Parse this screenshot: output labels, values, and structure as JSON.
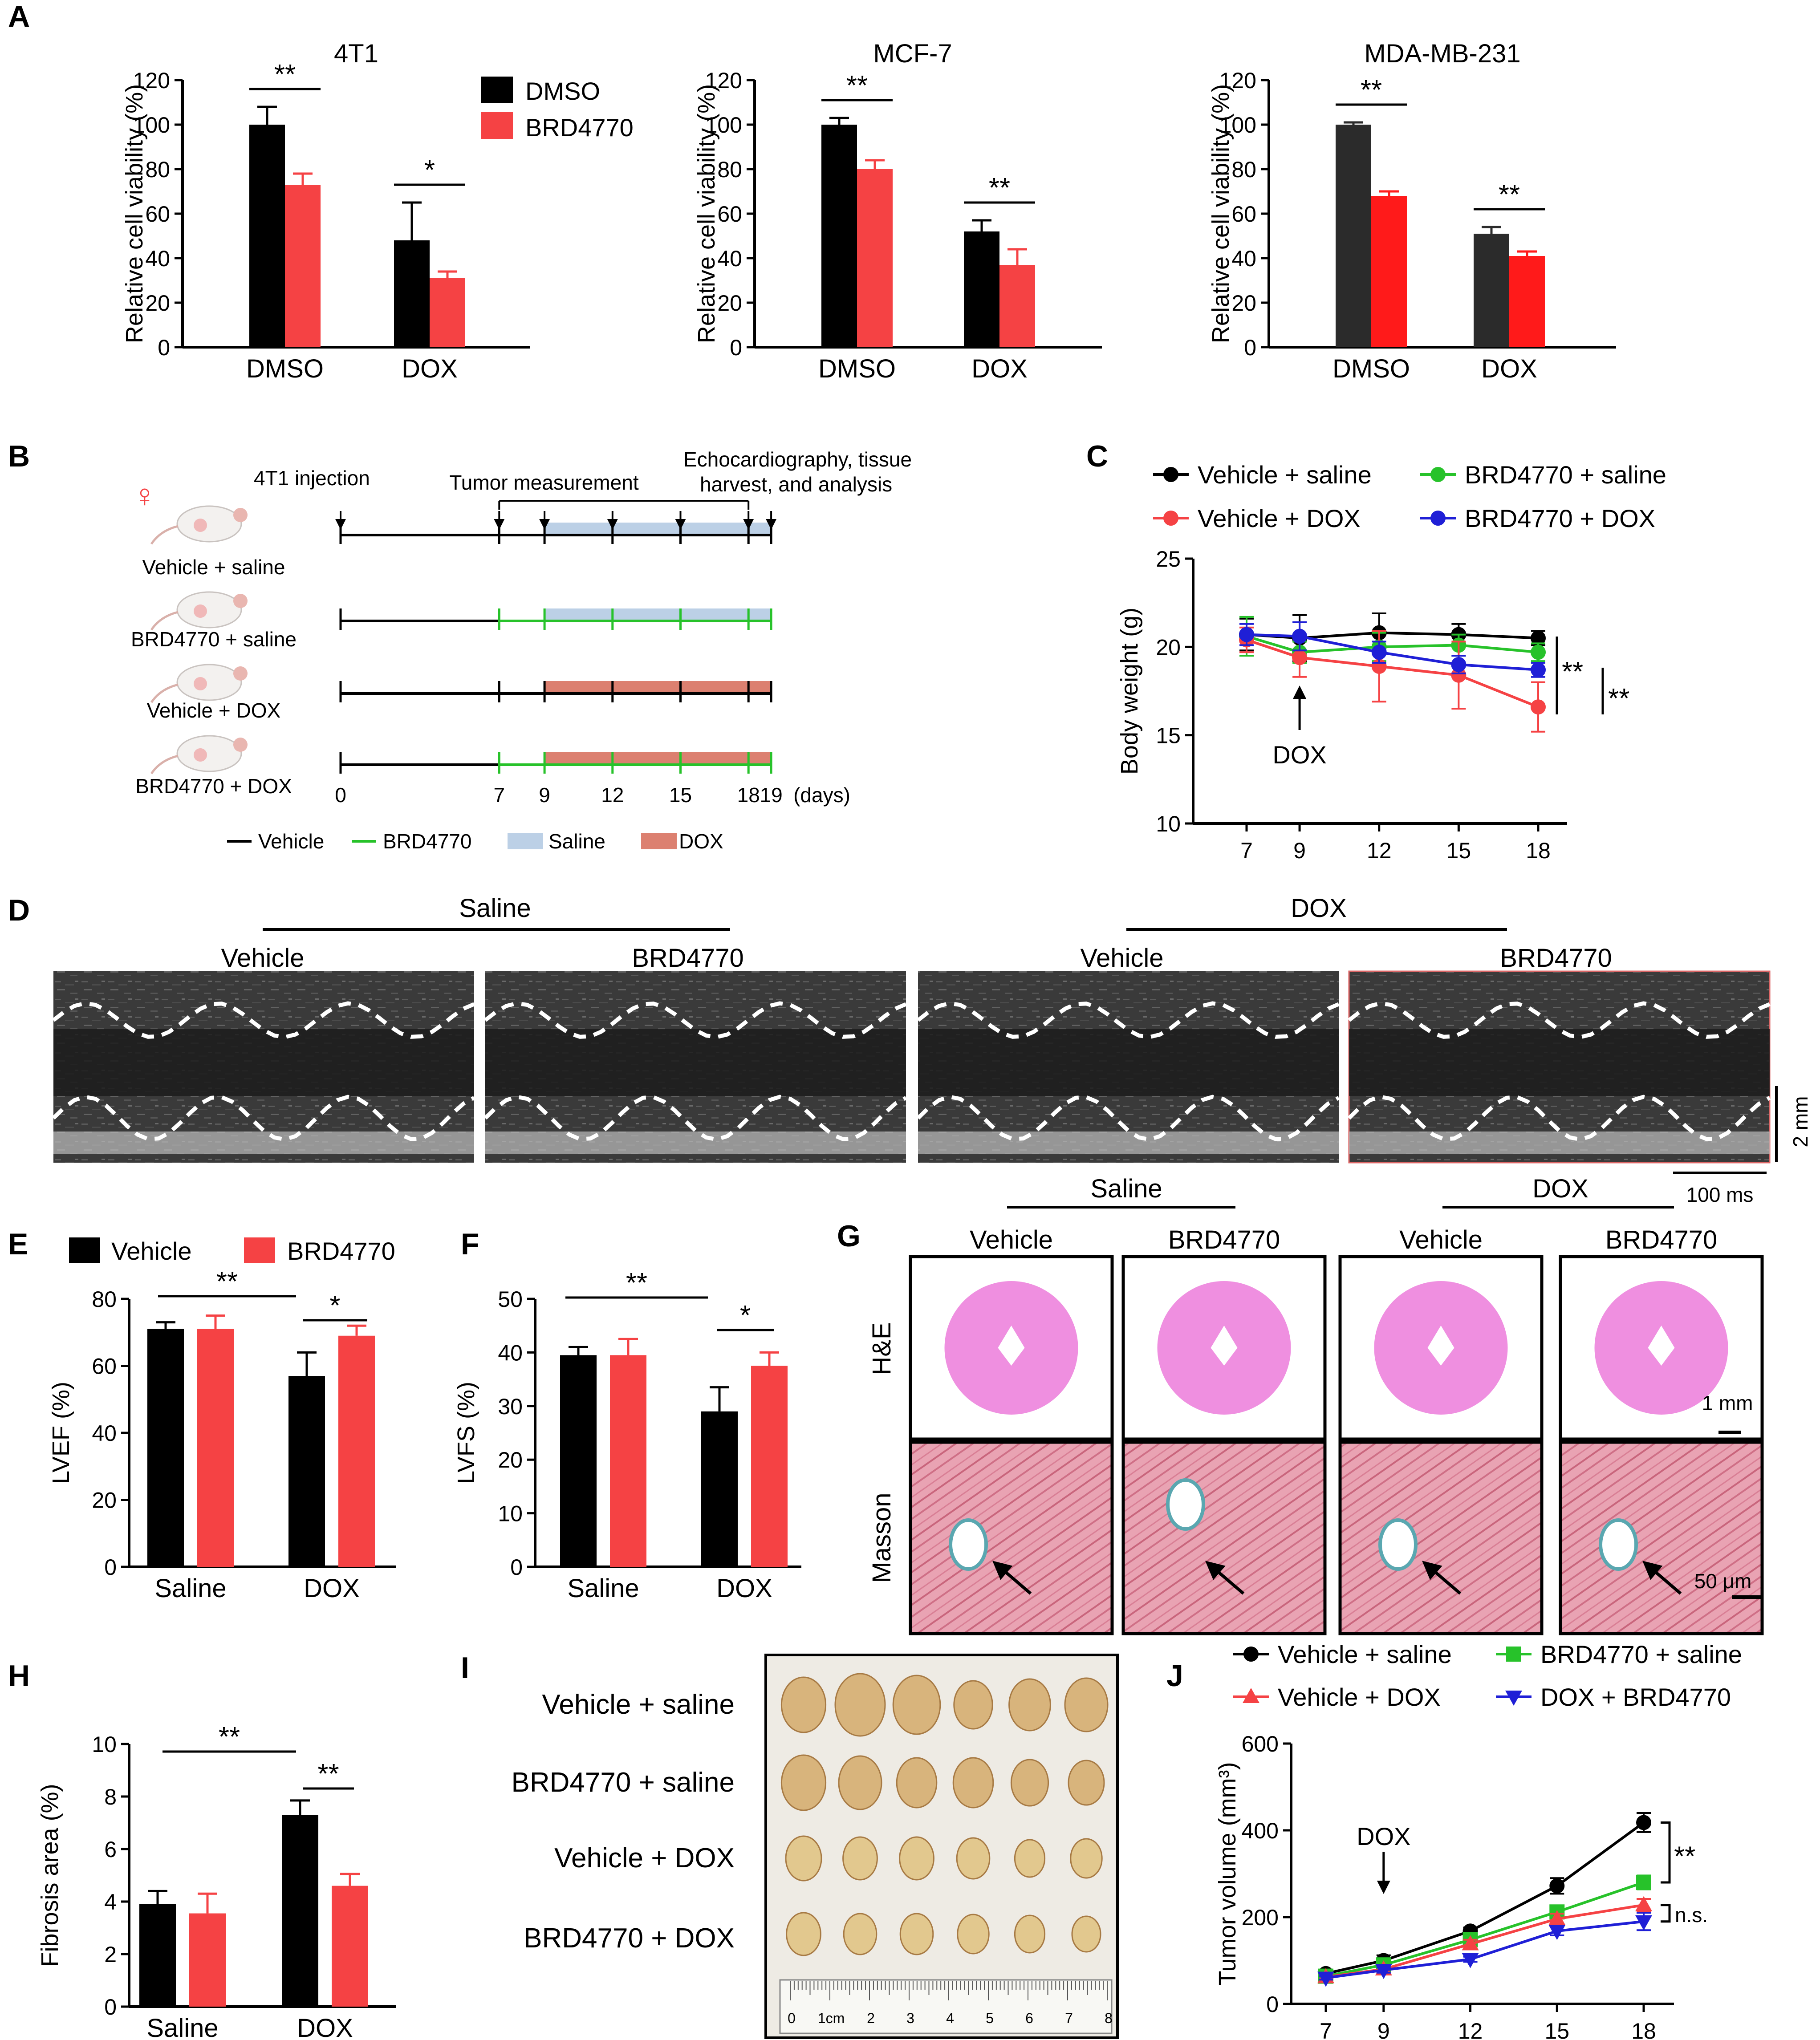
{
  "colors": {
    "black": "#000000",
    "dark": "#2b2b2b",
    "red": "#f54244",
    "pure_red": "#ff1a1a",
    "green": "#27c22a",
    "blue": "#1f1fd6",
    "saline_bar": "#bcd0e6",
    "dox_bar": "#dc8070",
    "muscle": "#e8a8b8",
    "he_pink": "#ef8fe0"
  },
  "panel_labels": {
    "a": "A",
    "b": "B",
    "c": "C",
    "d": "D",
    "e": "E",
    "f": "F",
    "g": "G",
    "h": "H",
    "i": "I",
    "j": "J"
  },
  "panel_a": {
    "legend": [
      "DMSO",
      "BRD4770"
    ],
    "charts": [
      {
        "title": "4T1",
        "categories": [
          "DMSO",
          "DOX"
        ],
        "series": [
          {
            "name": "DMSO",
            "values": [
              100,
              48
            ],
            "errors": [
              8,
              17
            ]
          },
          {
            "name": "BRD4770",
            "values": [
              73,
              31
            ],
            "errors": [
              5,
              3
            ]
          }
        ],
        "ylabel": "Relative cell viability (%)",
        "ylim": [
          0,
          120
        ],
        "yticks": [
          "0",
          "20",
          "40",
          "60",
          "80",
          "100",
          "120"
        ],
        "sig": [
          "**",
          "*"
        ]
      },
      {
        "title": "MCF-7",
        "categories": [
          "DMSO",
          "DOX"
        ],
        "series": [
          {
            "name": "DMSO",
            "values": [
              100,
              52
            ],
            "errors": [
              3,
              5
            ]
          },
          {
            "name": "BRD4770",
            "values": [
              80,
              37
            ],
            "errors": [
              4,
              7
            ]
          }
        ],
        "ylabel": "Relative cell viability (%)",
        "ylim": [
          0,
          120
        ],
        "yticks": [
          "0",
          "20",
          "40",
          "60",
          "80",
          "100",
          "120"
        ],
        "sig": [
          "**",
          "**"
        ]
      },
      {
        "title": "MDA-MB-231",
        "categories": [
          "DMSO",
          "DOX"
        ],
        "series": [
          {
            "name": "DMSO",
            "values": [
              100,
              51
            ],
            "errors": [
              1,
              3
            ]
          },
          {
            "name": "BRD4770",
            "values": [
              68,
              41
            ],
            "errors": [
              2,
              2
            ]
          }
        ],
        "ylabel": "Relative cell viability (%)",
        "ylim": [
          0,
          120
        ],
        "yticks": [
          "0",
          "20",
          "40",
          "60",
          "80",
          "100",
          "120"
        ],
        "sig": [
          "**",
          "**"
        ]
      }
    ]
  },
  "panel_b": {
    "symbol": "♀",
    "groups": [
      "Vehicle + saline",
      "BRD4770 + saline",
      "Vehicle + DOX",
      "BRD4770 + DOX"
    ],
    "injection_label": "4T1 injection",
    "measurement_label": "Tumor measurement",
    "echo_label_1": "Echocardiography, tissue",
    "echo_label_2": "harvest, and analysis",
    "days": [
      "0",
      "7",
      "9",
      "12",
      "15",
      "18",
      "19"
    ],
    "days_unit": "(days)",
    "legend": [
      "Vehicle",
      "BRD4770",
      "Saline",
      "DOX"
    ]
  },
  "panel_c": {
    "type": "line",
    "legend": [
      "Vehicle + saline",
      "BRD4770 + saline",
      "Vehicle + DOX",
      "BRD4770 + DOX"
    ],
    "x": [
      7,
      9,
      12,
      15,
      18
    ],
    "xticks": [
      "7",
      "9",
      "12",
      "15",
      "18"
    ],
    "series": [
      {
        "name": "Vehicle + saline",
        "values": [
          20.7,
          20.5,
          20.8,
          20.7,
          20.5
        ],
        "errors": [
          0.9,
          1.3,
          1.1,
          0.6,
          0.4
        ]
      },
      {
        "name": "BRD4770 + saline",
        "values": [
          20.6,
          19.7,
          20.0,
          20.1,
          19.7
        ],
        "errors": [
          1.1,
          0.6,
          0.8,
          0.6,
          0.5
        ]
      },
      {
        "name": "Vehicle + DOX",
        "values": [
          20.4,
          19.4,
          18.9,
          18.4,
          16.6
        ],
        "errors": [
          0.7,
          1.1,
          2.0,
          1.9,
          1.4
        ]
      },
      {
        "name": "BRD4770 + DOX",
        "values": [
          20.7,
          20.6,
          19.7,
          19.0,
          18.7
        ],
        "errors": [
          0.6,
          0.8,
          0.6,
          0.5,
          0.4
        ]
      }
    ],
    "ylabel": "Body weight (g)",
    "ylim": [
      10,
      25
    ],
    "yticks": [
      "10",
      "15",
      "20",
      "25"
    ],
    "arrow_label": "DOX",
    "sig": [
      "**",
      "**"
    ]
  },
  "panel_d": {
    "group_labels": [
      "Saline",
      "DOX"
    ],
    "image_labels": [
      "Vehicle",
      "BRD4770",
      "Vehicle",
      "BRD4770"
    ],
    "scale_y": "2 mm",
    "scale_x": "100 ms"
  },
  "panel_e": {
    "type": "bar",
    "legend": [
      "Vehicle",
      "BRD4770"
    ],
    "categories": [
      "Saline",
      "DOX"
    ],
    "series": [
      {
        "name": "Vehicle",
        "values": [
          71,
          57
        ],
        "errors": [
          2,
          7
        ]
      },
      {
        "name": "BRD4770",
        "values": [
          71,
          69
        ],
        "errors": [
          4,
          3
        ]
      }
    ],
    "ylabel": "LVEF (%)",
    "ylim": [
      0,
      80
    ],
    "yticks": [
      "0",
      "20",
      "40",
      "60",
      "80"
    ],
    "sig": [
      "**",
      "*"
    ]
  },
  "panel_f": {
    "type": "bar",
    "categories": [
      "Saline",
      "DOX"
    ],
    "series": [
      {
        "name": "Vehicle",
        "values": [
          39.5,
          29
        ],
        "errors": [
          1.5,
          4.5
        ]
      },
      {
        "name": "BRD4770",
        "values": [
          39.5,
          37.5
        ],
        "errors": [
          3,
          2.5
        ]
      }
    ],
    "ylabel": "LVFS (%)",
    "ylim": [
      0,
      50
    ],
    "yticks": [
      "0",
      "10",
      "20",
      "30",
      "40",
      "50"
    ],
    "sig": [
      "**",
      "*"
    ]
  },
  "panel_g": {
    "group_labels": [
      "Saline",
      "DOX"
    ],
    "column_labels": [
      "Vehicle",
      "BRD4770",
      "Vehicle",
      "BRD4770"
    ],
    "row_labels": [
      "H&E",
      "Masson"
    ],
    "scale_top": "1 mm",
    "scale_bottom": "50 μm"
  },
  "panel_h": {
    "type": "bar",
    "categories": [
      "Saline",
      "DOX"
    ],
    "series": [
      {
        "name": "Vehicle",
        "values": [
          3.9,
          7.3
        ],
        "errors": [
          0.5,
          0.55
        ]
      },
      {
        "name": "BRD4770",
        "values": [
          3.55,
          4.6
        ],
        "errors": [
          0.75,
          0.45
        ]
      }
    ],
    "ylabel": "Fibrosis area (%)",
    "ylim": [
      0,
      10
    ],
    "yticks": [
      "0",
      "2",
      "4",
      "6",
      "8",
      "10"
    ],
    "sig": [
      "**",
      "**"
    ]
  },
  "panel_i": {
    "rows": [
      "Vehicle + saline",
      "BRD4770 + saline",
      "Vehicle + DOX",
      "BRD4770 + DOX"
    ],
    "ruler_labels": [
      "0",
      "1cm",
      "2",
      "3",
      "4",
      "5",
      "6",
      "7",
      "8"
    ]
  },
  "panel_j": {
    "type": "line",
    "legend": [
      "Vehicle + saline",
      "BRD4770 + saline",
      "Vehicle + DOX",
      "DOX + BRD4770"
    ],
    "x": [
      7,
      9,
      12,
      15,
      18
    ],
    "xticks": [
      "7",
      "9",
      "12",
      "15",
      "18"
    ],
    "series": [
      {
        "name": "Vehicle + saline",
        "values": [
          70,
          100,
          168,
          272,
          418
        ],
        "errors": [
          6,
          12,
          8,
          18,
          22
        ]
      },
      {
        "name": "BRD4770 + saline",
        "values": [
          64,
          90,
          148,
          212,
          280
        ],
        "errors": [
          5,
          8,
          10,
          14,
          16
        ]
      },
      {
        "name": "Vehicle + DOX",
        "values": [
          62,
          80,
          138,
          196,
          228
        ],
        "errors": [
          5,
          8,
          10,
          12,
          14
        ]
      },
      {
        "name": "DOX + BRD4770",
        "values": [
          60,
          78,
          103,
          168,
          190
        ],
        "errors": [
          4,
          6,
          6,
          10,
          20
        ]
      }
    ],
    "ylabel": "Tumor volume (mm³)",
    "ylim": [
      0,
      600
    ],
    "yticks": [
      "0",
      "200",
      "400",
      "600"
    ],
    "arrow_label": "DOX",
    "sig": [
      "**",
      "n.s."
    ]
  }
}
